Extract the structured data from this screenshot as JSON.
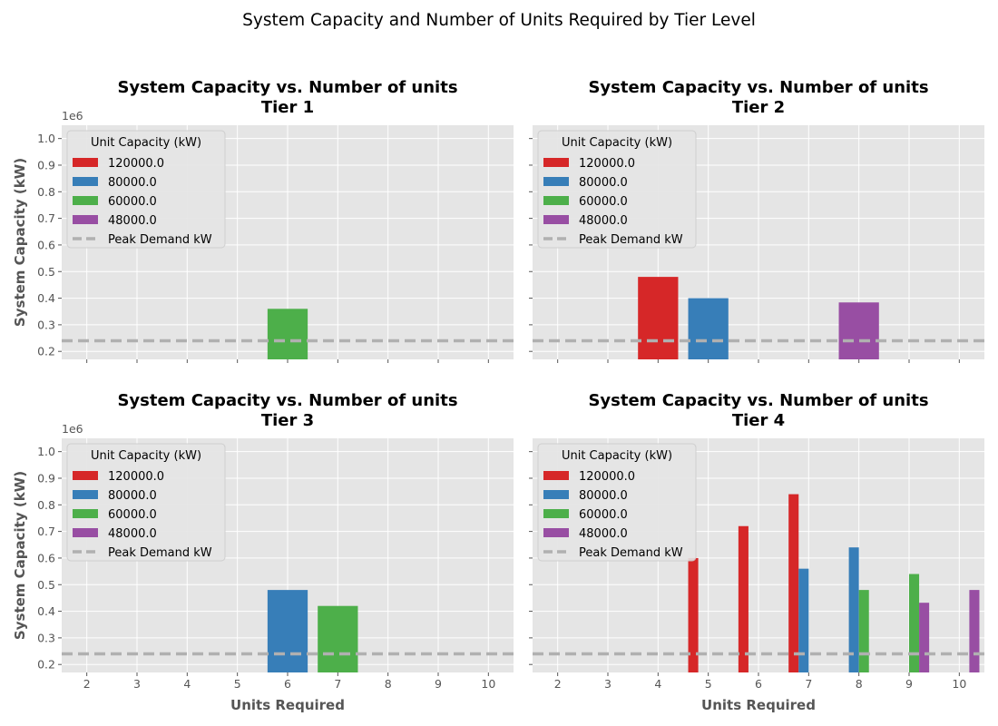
{
  "figure_title": "System Capacity and Number of Units Required by Tier Level",
  "colors": {
    "plot_bg": "#e5e5e5",
    "grid": "#ffffff",
    "tick_text": "#555555",
    "label_text": "#555555",
    "peak_line": "#b0b0b0"
  },
  "chart_data": [
    {
      "type": "bar",
      "title": "System Capacity vs. Number of units\nTier 1",
      "xlabel": "",
      "ylabel": "System Capacity (kW)",
      "offset_label": "1e6",
      "ylim": [
        170000,
        1050000
      ],
      "xlim": [
        1.5,
        10.5
      ],
      "x_ticks": [
        2,
        3,
        4,
        5,
        6,
        7,
        8,
        9,
        10
      ],
      "y_ticks": [
        0.2,
        0.3,
        0.4,
        0.5,
        0.6,
        0.7,
        0.8,
        0.9,
        1.0
      ],
      "grid": true,
      "legend": {
        "title": "Unit Capacity (kW)",
        "position": "upper-left",
        "entries": [
          "120000.0",
          "80000.0",
          "60000.0",
          "48000.0",
          "Peak Demand kW"
        ]
      },
      "peak_demand": 240000,
      "series": [
        {
          "name": "120000.0",
          "color": "#d62728",
          "points": []
        },
        {
          "name": "80000.0",
          "color": "#377eb8",
          "points": []
        },
        {
          "name": "60000.0",
          "color": "#4daf4a",
          "points": [
            {
              "x": 6,
              "y": 360000
            }
          ]
        },
        {
          "name": "48000.0",
          "color": "#984ea3",
          "points": []
        }
      ]
    },
    {
      "type": "bar",
      "title": "System Capacity vs. Number of units\nTier 2",
      "xlabel": "",
      "ylabel": "",
      "offset_label": "",
      "ylim": [
        170000,
        1050000
      ],
      "xlim": [
        1.5,
        10.5
      ],
      "x_ticks": [
        2,
        3,
        4,
        5,
        6,
        7,
        8,
        9,
        10
      ],
      "y_ticks": [],
      "grid": true,
      "legend": {
        "title": "Unit Capacity (kW)",
        "position": "upper-left",
        "entries": [
          "120000.0",
          "80000.0",
          "60000.0",
          "48000.0",
          "Peak Demand kW"
        ]
      },
      "peak_demand": 240000,
      "series": [
        {
          "name": "120000.0",
          "color": "#d62728",
          "points": [
            {
              "x": 4,
              "y": 480000
            }
          ]
        },
        {
          "name": "80000.0",
          "color": "#377eb8",
          "points": [
            {
              "x": 5,
              "y": 400000
            }
          ]
        },
        {
          "name": "60000.0",
          "color": "#4daf4a",
          "points": []
        },
        {
          "name": "48000.0",
          "color": "#984ea3",
          "points": [
            {
              "x": 8,
              "y": 384000
            }
          ]
        }
      ]
    },
    {
      "type": "bar",
      "title": "System Capacity vs. Number of units\nTier 3",
      "xlabel": "Units Required",
      "ylabel": "System Capacity (kW)",
      "offset_label": "1e6",
      "ylim": [
        170000,
        1050000
      ],
      "xlim": [
        1.5,
        10.5
      ],
      "x_ticks": [
        2,
        3,
        4,
        5,
        6,
        7,
        8,
        9,
        10
      ],
      "y_ticks": [
        0.2,
        0.3,
        0.4,
        0.5,
        0.6,
        0.7,
        0.8,
        0.9,
        1.0
      ],
      "grid": true,
      "legend": {
        "title": "Unit Capacity (kW)",
        "position": "upper-left",
        "entries": [
          "120000.0",
          "80000.0",
          "60000.0",
          "48000.0",
          "Peak Demand kW"
        ]
      },
      "peak_demand": 240000,
      "series": [
        {
          "name": "120000.0",
          "color": "#d62728",
          "points": []
        },
        {
          "name": "80000.0",
          "color": "#377eb8",
          "points": [
            {
              "x": 6,
              "y": 480000
            }
          ]
        },
        {
          "name": "60000.0",
          "color": "#4daf4a",
          "points": [
            {
              "x": 7,
              "y": 420000
            }
          ]
        },
        {
          "name": "48000.0",
          "color": "#984ea3",
          "points": []
        }
      ]
    },
    {
      "type": "bar",
      "title": "System Capacity vs. Number of units\nTier 4",
      "xlabel": "Units Required",
      "ylabel": "",
      "offset_label": "",
      "ylim": [
        170000,
        1050000
      ],
      "xlim": [
        1.5,
        10.5
      ],
      "x_ticks": [
        2,
        3,
        4,
        5,
        6,
        7,
        8,
        9,
        10
      ],
      "y_ticks": [],
      "grid": true,
      "legend": {
        "title": "Unit Capacity (kW)",
        "position": "upper-left",
        "entries": [
          "120000.0",
          "80000.0",
          "60000.0",
          "48000.0",
          "Peak Demand kW"
        ]
      },
      "peak_demand": 240000,
      "series": [
        {
          "name": "120000.0",
          "color": "#d62728",
          "points": [
            {
              "x": 5,
              "y": 600000
            },
            {
              "x": 6,
              "y": 720000
            },
            {
              "x": 7,
              "y": 840000
            }
          ]
        },
        {
          "name": "80000.0",
          "color": "#377eb8",
          "points": [
            {
              "x": 7,
              "y": 560000
            },
            {
              "x": 8,
              "y": 640000
            }
          ]
        },
        {
          "name": "60000.0",
          "color": "#4daf4a",
          "points": [
            {
              "x": 8,
              "y": 480000
            },
            {
              "x": 9,
              "y": 540000
            }
          ]
        },
        {
          "name": "48000.0",
          "color": "#984ea3",
          "points": [
            {
              "x": 9,
              "y": 432000
            },
            {
              "x": 10,
              "y": 480000
            }
          ]
        }
      ]
    }
  ]
}
